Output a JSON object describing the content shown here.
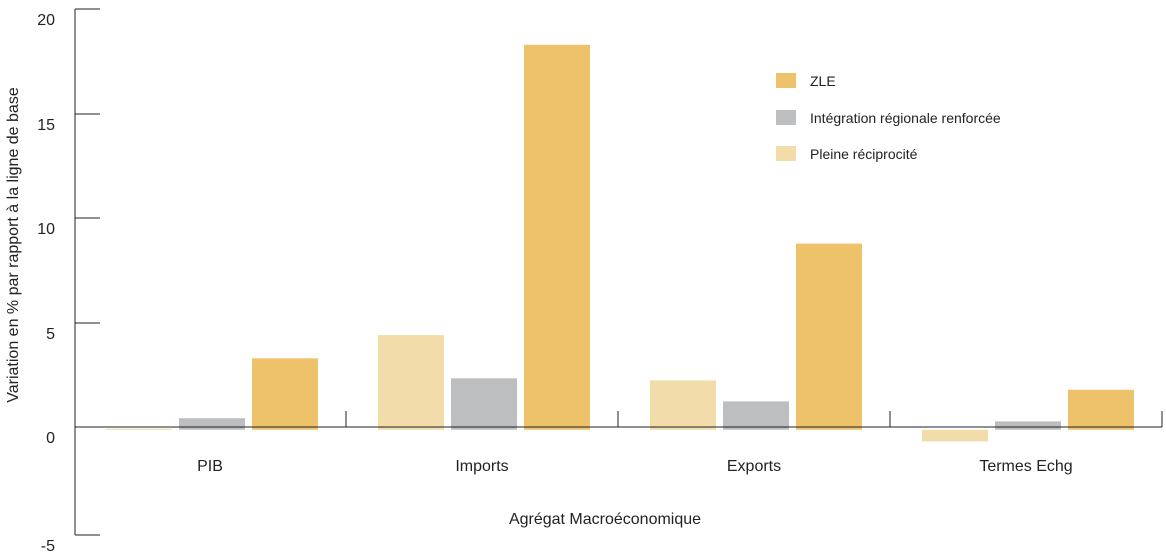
{
  "chart_data": {
    "type": "bar",
    "categories": [
      "PIB",
      "Imports",
      "Exports",
      "Termes Echg"
    ],
    "series": [
      {
        "name": "Pleine réciprocité",
        "color": "#F2DCAA",
        "values": [
          0.05,
          4.5,
          2.35,
          -0.55
        ]
      },
      {
        "name": "Intégration régionale renforcée",
        "color": "#BDBEC0",
        "values": [
          0.55,
          2.45,
          1.35,
          0.4
        ]
      },
      {
        "name": "ZLE",
        "color": "#EEC16B",
        "values": [
          3.4,
          18.3,
          8.85,
          1.9
        ]
      }
    ],
    "legend_order": [
      "ZLE",
      "Intégration régionale renforcée",
      "Pleine réciprocité"
    ],
    "legend_position": "top-right",
    "xlabel": "Agrégat Macroéconomique",
    "ylabel": "Variation en % par rapport à la ligne de base",
    "ylim": [
      -5,
      20
    ],
    "yticks": [
      "20",
      "15",
      "10",
      "5",
      "0",
      "-5"
    ],
    "grid": false
  }
}
